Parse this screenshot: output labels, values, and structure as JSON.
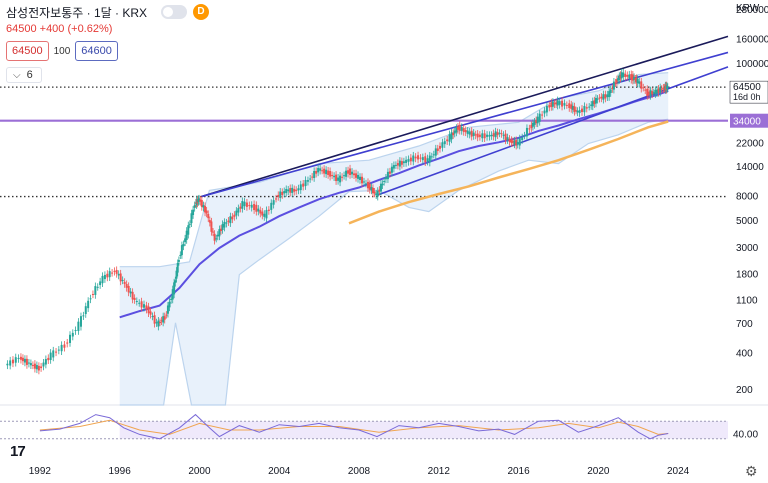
{
  "header": {
    "symbol": "삼성전자보통주 · 1달 · KRX",
    "badge": "D",
    "change": "64500 +400 (+0.62%)",
    "sell_price": "64500",
    "spread": "100",
    "buy_price": "64600",
    "indicator_count": "6",
    "currency": "KRW"
  },
  "colors": {
    "up_candle": "#26a69a",
    "down_candle": "#ef5350",
    "channel": "#3f3fd0",
    "ma": "#5b4fe0",
    "ma_long": "#f5b45a",
    "band": "#bcd4ee",
    "band_fill": "#e8f1fb",
    "hline": "#9b6fd6",
    "rsi": "#7a6ad8",
    "rsi_signal": "#f0a550"
  },
  "icons": {
    "logo": "tradingview-logo-icon",
    "settings": "gear-icon",
    "chevron": "chevron-down-icon"
  },
  "chart_data": {
    "type": "line",
    "title": "",
    "xlabel": "",
    "ylabel": "",
    "y_scale": "log",
    "x_range": [
      1990.0,
      2026.5
    ],
    "y_range": [
      150,
      340000
    ],
    "x_ticks": [
      {
        "t": 1992,
        "label": "1992"
      },
      {
        "t": 1996,
        "label": "1996"
      },
      {
        "t": 2000,
        "label": "2000"
      },
      {
        "t": 2004,
        "label": "2004"
      },
      {
        "t": 2008,
        "label": "2008"
      },
      {
        "t": 2012,
        "label": "2012"
      },
      {
        "t": 2016,
        "label": "2016"
      },
      {
        "t": 2020,
        "label": "2020"
      },
      {
        "t": 2024,
        "label": "2024"
      }
    ],
    "y_ticks": [
      {
        "v": 280000,
        "label": "280000"
      },
      {
        "v": 160000,
        "label": "160000"
      },
      {
        "v": 100000,
        "label": "100000"
      },
      {
        "v": 22000,
        "label": "22000"
      },
      {
        "v": 14000,
        "label": "14000"
      },
      {
        "v": 8000,
        "label": "8000"
      },
      {
        "v": 5000,
        "label": "5000"
      },
      {
        "v": 3000,
        "label": "3000"
      },
      {
        "v": 1800,
        "label": "1800"
      },
      {
        "v": 1100,
        "label": "1100"
      },
      {
        "v": 700,
        "label": "700"
      },
      {
        "v": 400,
        "label": "400"
      },
      {
        "v": 200,
        "label": "200"
      }
    ],
    "price_series": [
      [
        1990.3,
        320
      ],
      [
        1991.0,
        370
      ],
      [
        1991.5,
        330
      ],
      [
        1992.0,
        300
      ],
      [
        1992.6,
        390
      ],
      [
        1993.3,
        470
      ],
      [
        1994.0,
        700
      ],
      [
        1994.6,
        1200
      ],
      [
        1995.2,
        1700
      ],
      [
        1995.8,
        1950
      ],
      [
        1996.3,
        1500
      ],
      [
        1996.8,
        1100
      ],
      [
        1997.4,
        950
      ],
      [
        1997.9,
        700
      ],
      [
        1998.3,
        800
      ],
      [
        1998.7,
        1300
      ],
      [
        1999.0,
        2500
      ],
      [
        1999.4,
        4000
      ],
      [
        1999.8,
        7000
      ],
      [
        2000.0,
        7600
      ],
      [
        2000.4,
        5800
      ],
      [
        2000.8,
        3500
      ],
      [
        2001.2,
        4600
      ],
      [
        2001.7,
        5400
      ],
      [
        2002.2,
        7000
      ],
      [
        2002.8,
        6500
      ],
      [
        2003.3,
        5500
      ],
      [
        2003.9,
        8000
      ],
      [
        2004.4,
        9000
      ],
      [
        2004.9,
        9000
      ],
      [
        2005.5,
        11000
      ],
      [
        2006.0,
        13500
      ],
      [
        2006.5,
        12500
      ],
      [
        2007.0,
        11000
      ],
      [
        2007.5,
        13000
      ],
      [
        2008.0,
        11500
      ],
      [
        2008.5,
        9800
      ],
      [
        2008.9,
        8200
      ],
      [
        2009.3,
        11000
      ],
      [
        2009.8,
        14500
      ],
      [
        2010.3,
        15500
      ],
      [
        2010.9,
        17000
      ],
      [
        2011.5,
        16000
      ],
      [
        2012.0,
        20000
      ],
      [
        2012.6,
        25000
      ],
      [
        2013.0,
        30000
      ],
      [
        2013.5,
        27000
      ],
      [
        2014.0,
        25500
      ],
      [
        2014.6,
        25500
      ],
      [
        2015.1,
        27000
      ],
      [
        2015.6,
        23000
      ],
      [
        2016.0,
        22000
      ],
      [
        2016.6,
        30000
      ],
      [
        2017.0,
        35000
      ],
      [
        2017.6,
        46000
      ],
      [
        2018.0,
        48000
      ],
      [
        2018.6,
        45000
      ],
      [
        2019.0,
        40000
      ],
      [
        2019.6,
        45000
      ],
      [
        2020.0,
        52000
      ],
      [
        2020.5,
        55000
      ],
      [
        2020.9,
        72000
      ],
      [
        2021.2,
        82000
      ],
      [
        2021.7,
        78000
      ],
      [
        2022.0,
        72000
      ],
      [
        2022.5,
        57000
      ],
      [
        2022.9,
        59000
      ],
      [
        2023.3,
        63500
      ],
      [
        2023.5,
        64500
      ]
    ],
    "moving_average": [
      [
        1996.0,
        800
      ],
      [
        1997.0,
        900
      ],
      [
        1998.0,
        1000
      ],
      [
        1999.0,
        1400
      ],
      [
        2000.0,
        2200
      ],
      [
        2001.0,
        3000
      ],
      [
        2002.0,
        3800
      ],
      [
        2003.0,
        4500
      ],
      [
        2004.0,
        5500
      ],
      [
        2005.0,
        6500
      ],
      [
        2006.0,
        7600
      ],
      [
        2007.0,
        8600
      ],
      [
        2008.0,
        9500
      ],
      [
        2009.0,
        11000
      ],
      [
        2010.0,
        12500
      ],
      [
        2011.0,
        14500
      ],
      [
        2012.0,
        16500
      ],
      [
        2013.0,
        19000
      ],
      [
        2014.0,
        21000
      ],
      [
        2015.0,
        22500
      ],
      [
        2016.0,
        24500
      ],
      [
        2017.0,
        28000
      ],
      [
        2018.0,
        31000
      ],
      [
        2019.0,
        35000
      ],
      [
        2020.0,
        39000
      ],
      [
        2021.0,
        44000
      ],
      [
        2022.0,
        50000
      ],
      [
        2023.0,
        56000
      ],
      [
        2023.5,
        60000
      ]
    ],
    "long_moving_average": [
      [
        2007.5,
        4800
      ],
      [
        2009.0,
        6000
      ],
      [
        2010.5,
        7200
      ],
      [
        2012.0,
        8400
      ],
      [
        2013.5,
        9700
      ],
      [
        2015.0,
        11500
      ],
      [
        2016.5,
        13500
      ],
      [
        2018.0,
        16000
      ],
      [
        2019.5,
        19500
      ],
      [
        2021.0,
        24000
      ],
      [
        2022.5,
        30000
      ],
      [
        2023.5,
        33500
      ]
    ],
    "band_upper": [
      [
        1996.0,
        2100
      ],
      [
        1998.0,
        2100
      ],
      [
        1999.5,
        2300
      ],
      [
        2000.5,
        9000
      ],
      [
        2003.0,
        10500
      ],
      [
        2006.0,
        15000
      ],
      [
        2008.5,
        16000
      ],
      [
        2011.0,
        21000
      ],
      [
        2013.5,
        30000
      ],
      [
        2016.0,
        33000
      ],
      [
        2018.0,
        52000
      ],
      [
        2020.0,
        60000
      ],
      [
        2022.0,
        82000
      ],
      [
        2023.5,
        85000
      ]
    ],
    "band_lower": [
      [
        1996.0,
        150
      ],
      [
        1998.2,
        150
      ],
      [
        1998.8,
        720
      ],
      [
        1999.6,
        150
      ],
      [
        2000.3,
        150
      ],
      [
        2001.3,
        150
      ],
      [
        2002.0,
        1800
      ],
      [
        2003.0,
        2400
      ],
      [
        2004.5,
        3600
      ],
      [
        2006.0,
        5500
      ],
      [
        2007.5,
        8800
      ],
      [
        2009.0,
        9000
      ],
      [
        2010.5,
        6500
      ],
      [
        2011.5,
        6000
      ],
      [
        2013.0,
        9000
      ],
      [
        2015.0,
        13000
      ],
      [
        2016.5,
        16000
      ],
      [
        2018.0,
        15000
      ],
      [
        2019.5,
        22000
      ],
      [
        2021.0,
        26000
      ],
      [
        2022.5,
        33000
      ],
      [
        2023.5,
        35000
      ]
    ],
    "channel_upper": [
      [
        2000.1,
        8000
      ],
      [
        2026.5,
        170000
      ]
    ],
    "channel_mid": [
      [
        2000.1,
        8000
      ],
      [
        2026.5,
        125000
      ]
    ],
    "channel_lower": [
      [
        2008.9,
        8200
      ],
      [
        2026.5,
        95000
      ]
    ],
    "horizontal_lines": [
      {
        "value": 64500,
        "style": "dotted"
      },
      {
        "value": 34000,
        "style": "solid"
      },
      {
        "value": 8000,
        "style": "dotted"
      }
    ],
    "price_labels": [
      {
        "value": 64500,
        "label": "64500",
        "sub": "16d 0h"
      },
      {
        "value": 34000,
        "label": "34000"
      }
    ],
    "rsi": {
      "y_range": [
        0,
        100
      ],
      "y_ticks": [
        {
          "v": 40,
          "label": "40.00"
        }
      ],
      "levels": [
        70,
        30
      ],
      "series": [
        [
          1992.0,
          48
        ],
        [
          1993.0,
          52
        ],
        [
          1994.0,
          65
        ],
        [
          1994.8,
          85
        ],
        [
          1995.5,
          78
        ],
        [
          1996.2,
          55
        ],
        [
          1997.0,
          40
        ],
        [
          1998.0,
          30
        ],
        [
          1999.0,
          55
        ],
        [
          1999.8,
          85
        ],
        [
          2000.5,
          55
        ],
        [
          2001.0,
          35
        ],
        [
          2002.0,
          60
        ],
        [
          2003.0,
          45
        ],
        [
          2004.0,
          62
        ],
        [
          2005.0,
          58
        ],
        [
          2006.0,
          65
        ],
        [
          2007.0,
          55
        ],
        [
          2008.0,
          50
        ],
        [
          2008.9,
          35
        ],
        [
          2010.0,
          60
        ],
        [
          2011.0,
          55
        ],
        [
          2012.0,
          65
        ],
        [
          2013.0,
          58
        ],
        [
          2014.0,
          48
        ],
        [
          2015.0,
          52
        ],
        [
          2015.8,
          40
        ],
        [
          2017.0,
          70
        ],
        [
          2018.0,
          72
        ],
        [
          2019.0,
          45
        ],
        [
          2020.0,
          60
        ],
        [
          2021.0,
          78
        ],
        [
          2022.0,
          45
        ],
        [
          2022.6,
          30
        ],
        [
          2023.0,
          38
        ],
        [
          2023.5,
          42
        ]
      ],
      "signal": [
        [
          1992.0,
          50
        ],
        [
          1994.0,
          58
        ],
        [
          1995.5,
          72
        ],
        [
          1997.0,
          50
        ],
        [
          1998.5,
          40
        ],
        [
          2000.0,
          65
        ],
        [
          2001.5,
          50
        ],
        [
          2003.0,
          50
        ],
        [
          2005.0,
          58
        ],
        [
          2007.0,
          58
        ],
        [
          2009.0,
          45
        ],
        [
          2011.0,
          55
        ],
        [
          2013.0,
          60
        ],
        [
          2015.0,
          50
        ],
        [
          2017.0,
          55
        ],
        [
          2018.5,
          65
        ],
        [
          2020.0,
          55
        ],
        [
          2021.0,
          68
        ],
        [
          2022.0,
          58
        ],
        [
          2023.0,
          40
        ],
        [
          2023.5,
          42
        ]
      ]
    }
  }
}
